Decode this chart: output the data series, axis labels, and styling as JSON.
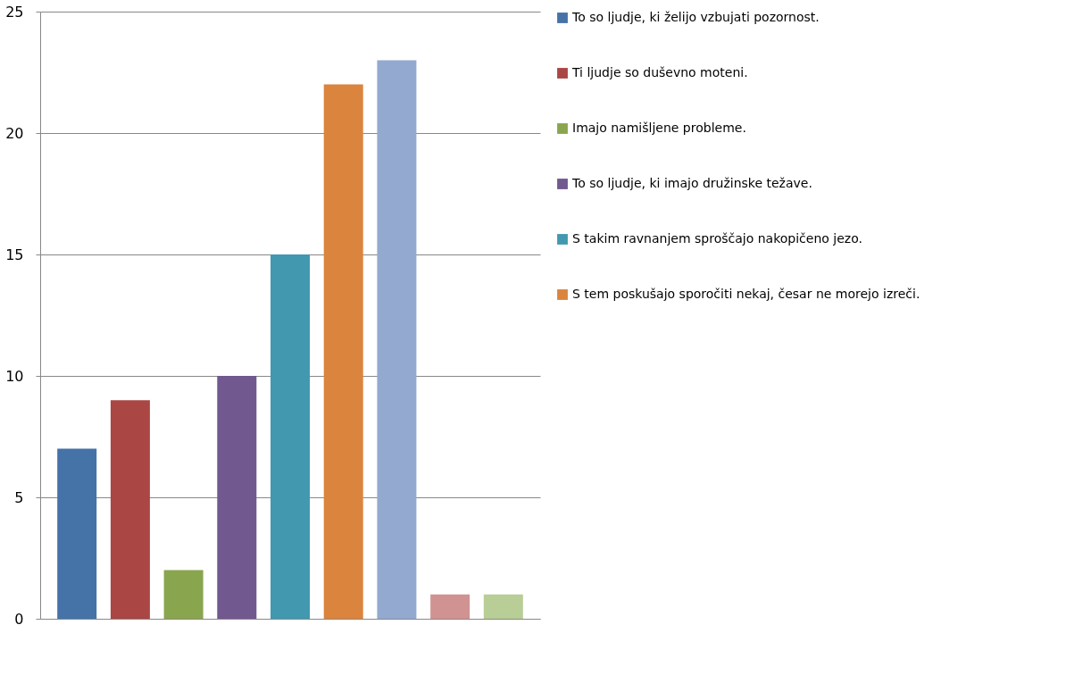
{
  "chart_data": {
    "type": "bar",
    "categories": [
      null
    ],
    "series": [
      {
        "name": "To so ljudje, ki želijo vzbujati pozornost.",
        "color": "#4572a7",
        "values": [
          7
        ]
      },
      {
        "name": "Ti ljudje so duševno moteni.",
        "color": "#aa4643",
        "values": [
          9
        ]
      },
      {
        "name": "Imajo namišljene probleme.",
        "color": "#89a54e",
        "values": [
          2
        ]
      },
      {
        "name": "To so ljudje, ki imajo družinske težave.",
        "color": "#71588f",
        "values": [
          10
        ]
      },
      {
        "name": "S takim ravnanjem sproščajo nakopičeno jezo.",
        "color": "#4198af",
        "values": [
          15
        ]
      },
      {
        "name": "S tem poskušajo sporočiti nekaj, česar ne morejo izreči.",
        "color": "#db843d",
        "values": [
          22
        ]
      },
      {
        "color": "#93a9cf",
        "values": [
          23
        ]
      },
      {
        "color": "#d19392",
        "values": [
          1
        ]
      },
      {
        "color": "#b9cd96",
        "values": [
          1
        ]
      }
    ],
    "ylim": [
      0,
      25
    ],
    "yticks": [
      0,
      5,
      10,
      15,
      20,
      25
    ],
    "grid": "y",
    "legend": "right"
  }
}
